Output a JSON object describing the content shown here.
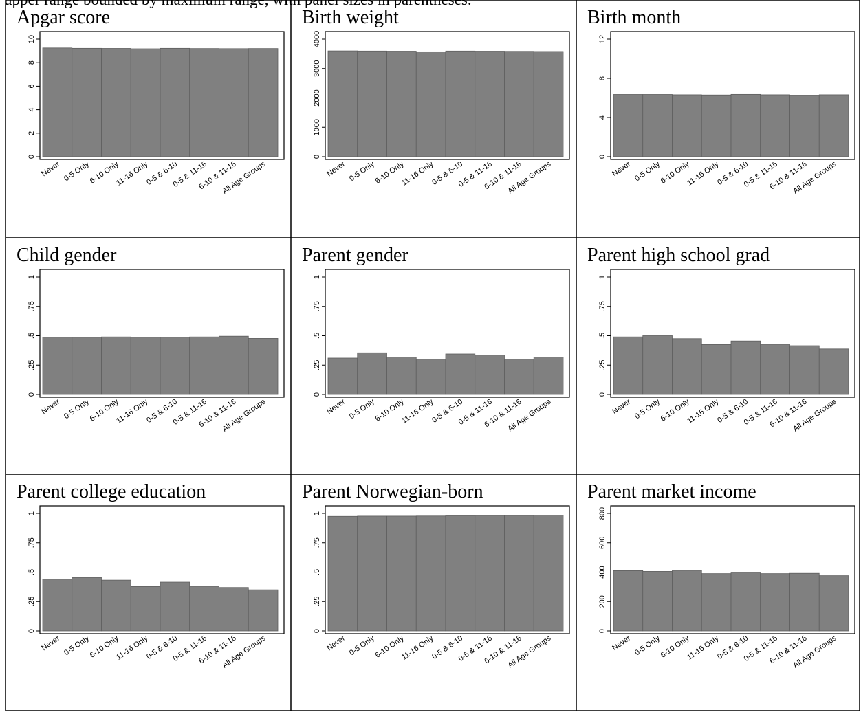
{
  "page_title": "upper range bounded by maximum range, with panel sizes in parentheses.",
  "chart_data": [
    {
      "type": "bar",
      "title": "Apgar score",
      "categories": [
        "Never",
        "0-5 Only",
        "6-10 Only",
        "11-16 Only",
        "0-5 & 6-10",
        "0-5 & 11-16",
        "6-10 & 11-16",
        "All Age Groups"
      ],
      "values": [
        9.25,
        9.22,
        9.21,
        9.18,
        9.22,
        9.2,
        9.19,
        9.2
      ],
      "ylim": [
        0,
        10
      ],
      "yticks": [
        0,
        2,
        4,
        6,
        8,
        10
      ],
      "ytick_labels": [
        "0",
        "2",
        "4",
        "6",
        "8",
        "10"
      ],
      "grid": false
    },
    {
      "type": "bar",
      "title": "Birth weight",
      "categories": [
        "Never",
        "0-5 Only",
        "6-10 Only",
        "11-16 Only",
        "0-5 & 6-10",
        "0-5 & 11-16",
        "6-10 & 11-16",
        "All Age Groups"
      ],
      "values": [
        3600,
        3595,
        3590,
        3570,
        3595,
        3590,
        3585,
        3580
      ],
      "ylim": [
        0,
        4000
      ],
      "yticks": [
        0,
        1000,
        2000,
        3000,
        4000
      ],
      "ytick_labels": [
        "0",
        "1000",
        "2000",
        "3000",
        "4000"
      ],
      "grid": false
    },
    {
      "type": "bar",
      "title": "Birth month",
      "categories": [
        "Never",
        "0-5 Only",
        "6-10 Only",
        "11-16 Only",
        "0-5 & 6-10",
        "0-5 & 11-16",
        "6-10 & 11-16",
        "All Age Groups"
      ],
      "values": [
        6.35,
        6.35,
        6.32,
        6.3,
        6.36,
        6.32,
        6.28,
        6.32
      ],
      "ylim": [
        0,
        12
      ],
      "yticks": [
        0,
        4,
        8,
        12
      ],
      "ytick_labels": [
        "0",
        "4",
        "8",
        "12"
      ],
      "grid": false
    },
    {
      "type": "bar",
      "title": "Child gender",
      "categories": [
        "Never",
        "0-5 Only",
        "6-10 Only",
        "11-16 Only",
        "0-5 & 6-10",
        "0-5 & 11-16",
        "6-10 & 11-16",
        "All Age Groups"
      ],
      "values": [
        0.487,
        0.482,
        0.49,
        0.487,
        0.487,
        0.49,
        0.496,
        0.477
      ],
      "ylim": [
        0,
        1
      ],
      "yticks": [
        0,
        0.25,
        0.5,
        0.75,
        1
      ],
      "ytick_labels": [
        "0",
        ".25",
        ".5",
        ".75",
        "1"
      ],
      "grid": false
    },
    {
      "type": "bar",
      "title": "Parent gender",
      "categories": [
        "Never",
        "0-5 Only",
        "6-10 Only",
        "11-16 Only",
        "0-5 & 6-10",
        "0-5 & 11-16",
        "6-10 & 11-16",
        "All Age Groups"
      ],
      "values": [
        0.31,
        0.355,
        0.318,
        0.3,
        0.345,
        0.335,
        0.3,
        0.318
      ],
      "ylim": [
        0,
        1
      ],
      "yticks": [
        0,
        0.25,
        0.5,
        0.75,
        1
      ],
      "ytick_labels": [
        "0",
        ".25",
        ".5",
        ".75",
        "1"
      ],
      "grid": false
    },
    {
      "type": "bar",
      "title": "Parent high school grad",
      "categories": [
        "Never",
        "0-5 Only",
        "6-10 Only",
        "11-16 Only",
        "0-5 & 6-10",
        "0-5 & 11-16",
        "6-10 & 11-16",
        "All Age Groups"
      ],
      "values": [
        0.49,
        0.5,
        0.475,
        0.425,
        0.455,
        0.427,
        0.415,
        0.387
      ],
      "ylim": [
        0,
        1
      ],
      "yticks": [
        0,
        0.25,
        0.5,
        0.75,
        1
      ],
      "ytick_labels": [
        "0",
        ".25",
        ".5",
        ".75",
        "1"
      ],
      "grid": false
    },
    {
      "type": "bar",
      "title": "Parent college education",
      "categories": [
        "Never",
        "0-5 Only",
        "6-10 Only",
        "11-16 Only",
        "0-5 & 6-10",
        "0-5 & 11-16",
        "6-10 & 11-16",
        "All Age Groups"
      ],
      "values": [
        0.44,
        0.455,
        0.432,
        0.378,
        0.415,
        0.38,
        0.37,
        0.35
      ],
      "ylim": [
        0,
        1
      ],
      "yticks": [
        0,
        0.25,
        0.5,
        0.75,
        1
      ],
      "ytick_labels": [
        "0",
        ".25",
        ".5",
        ".75",
        "1"
      ],
      "grid": false
    },
    {
      "type": "bar",
      "title": "Parent Norwegian-born",
      "categories": [
        "Never",
        "0-5 Only",
        "6-10 Only",
        "11-16 Only",
        "0-5 & 6-10",
        "0-5 & 11-16",
        "6-10 & 11-16",
        "All Age Groups"
      ],
      "values": [
        0.975,
        0.977,
        0.977,
        0.978,
        0.982,
        0.983,
        0.983,
        0.985
      ],
      "ylim": [
        0,
        1
      ],
      "yticks": [
        0,
        0.25,
        0.5,
        0.75,
        1
      ],
      "ytick_labels": [
        "0",
        ".25",
        ".5",
        ".75",
        "1"
      ],
      "grid": false
    },
    {
      "type": "bar",
      "title": "Parent market income",
      "categories": [
        "Never",
        "0-5 Only",
        "6-10 Only",
        "11-16 Only",
        "0-5 & 6-10",
        "0-5 & 11-16",
        "6-10 & 11-16",
        "All Age Groups"
      ],
      "values": [
        410,
        405,
        412,
        390,
        395,
        390,
        392,
        376
      ],
      "ylim": [
        0,
        800
      ],
      "yticks": [
        0,
        200,
        400,
        600,
        800
      ],
      "ytick_labels": [
        "0",
        "200",
        "400",
        "600",
        "800"
      ],
      "grid": false
    }
  ]
}
